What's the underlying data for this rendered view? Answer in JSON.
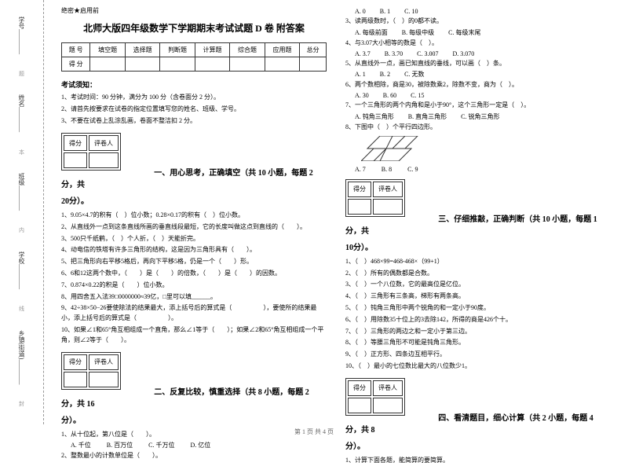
{
  "binding": {
    "items": [
      "学号________",
      "姓名________",
      "班级________",
      "学校________",
      "乡镇(街道)________"
    ],
    "markers": [
      "题",
      "本",
      "内",
      "线",
      "封"
    ]
  },
  "header": {
    "secret": "绝密★启用前",
    "title": "北师大版四年级数学下学期期末考试试题 D 卷 附答案"
  },
  "scoreTable": {
    "headers": [
      "题 号",
      "填空题",
      "选择题",
      "判断题",
      "计算题",
      "综合题",
      "应用题",
      "总分"
    ],
    "row2": "得 分"
  },
  "notice": {
    "title": "考试须知：",
    "items": [
      "1、考试时间：90 分钟，满分为 100 分（含卷面分 2 分）。",
      "2、请首先按要求在试卷的指定位置填写您的姓名、班级、学号。",
      "3、不要在试卷上乱涂乱画，卷面不整洁扣 2 分。"
    ]
  },
  "scoreBox": {
    "h1": "得分",
    "h2": "评卷人"
  },
  "sections": {
    "s1": {
      "title": "一、用心思考，正确填空（共 10 小题，每题 2 分，共",
      "cont": "20分）。",
      "questions": [
        "1、9.05×4.7的积有（　）位小数；0.28×0.17的积有（　）位小数。",
        "2、从直线外一点到这条直线所画的垂直线段最短，它的长度叫做这点到直线的（　　）。",
        "3、500只千纸鹤，（　）个人折，（　）天能折完。",
        "4、动电信的铁塔有许多三角形的结构，这是因为三角形具有（　　）。",
        "5、把三角形向右平移5格后，再向下平移5格，仍是一个（　　）形。",
        "6、6和12这两个数中，（　　）是（　　）的倍数，（　　）是（　　）的因数。",
        "7、0.874×0.22的积是（　　）位小数。",
        "8、用四舍五入法39□0000000≈39亿，□里可以填______。",
        "9、42÷38×50−26要使除法的结果最大，添上括号后的算式是（　　　　　），要使所的结果最小，添上括号后的算式是（　　　　　）。",
        "10、如果∠1和65°角互相组成一个直角，那么∠1等于（　　）；如果∠2和65°角互相组成一个平角，则∠2等于（　　）。"
      ]
    },
    "s2": {
      "title": "二、反复比较，慎重选择（共 8 小题，每题 2 分，共 16",
      "cont": "分）。",
      "questions": [
        "1、从十位起，第八位是（　　）。",
        "2、整数最小的计数单位是（　　）。"
      ],
      "options1": [
        "A. 千位",
        "B. 百万位",
        "C. 千万位",
        "D. 亿位"
      ]
    },
    "s2r": {
      "optA": [
        {
          "q": "",
          "opts": [
            "A. 0",
            "B. 1",
            "C. 10"
          ]
        },
        {
          "q": "3、读两级数时，（　）的0都不读。",
          "opts": [
            "A. 每级前面",
            "B. 每级中级",
            "C. 每级末尾"
          ]
        },
        {
          "q": "4、与3.07大小相等的数是（　）。",
          "opts": [
            "A. 3.7",
            "B. 3.70",
            "C. 3.007",
            "D. 3.070"
          ]
        },
        {
          "q": "5、从直线外一点，画已知直线的垂线，可以画（　）条。",
          "opts": [
            "A. 1",
            "B. 2",
            "C. 无数"
          ]
        },
        {
          "q": "6、两个数相除，商是30，被除数乘2，除数不变，商为（　）。",
          "opts": [
            "A. 30",
            "B. 60",
            "C. 15"
          ]
        },
        {
          "q": "7、一个三角形的两个内角和是小于90°，这个三角形一定是（　）。",
          "opts": [
            "A. 钝角三角形",
            "B. 直角三角形",
            "C. 锐角三角形"
          ]
        },
        {
          "q": "8、下图中（　）个平行四边形。",
          "opts": [
            "A. 7",
            "B. 8",
            "C. 9"
          ]
        }
      ]
    },
    "s3": {
      "title": "三、仔细推敲，正确判断（共 10 小题，每题 1 分，共",
      "cont": "10分）。",
      "questions": [
        "1、（　）468×99=468-468×（99+1）",
        "2、（　）所有的偶数都是合数。",
        "3、（　）一个八位数，它的最高位是亿位。",
        "4、（　）三角形有三条高，梯形有两条高。",
        "5、（　）钝角三角形中两个锐角的和一定小于90度。",
        "6、（　）用除数35十位上的3去除142，所得的商是426个十。",
        "7、（　）三角形的两边之和一定小于第三边。",
        "8、（　）等腰三角形不可能是钝角三角形。",
        "9、（　）正方形、四条边互相平行。",
        "10、（　）最小的七位数比最大的八位数少1。"
      ]
    },
    "s4": {
      "title": "四、看清题目，细心计算（共 2 小题，每题 4 分，共 8",
      "cont": "分）。",
      "questions": [
        "1、计算下面各题，能简算的要简算。"
      ]
    }
  },
  "diagram": {
    "width": 80,
    "height": 32,
    "fill": "none",
    "stroke": "#333",
    "strokeWidth": 1
  },
  "footer": "第 1 页 共 4 页"
}
